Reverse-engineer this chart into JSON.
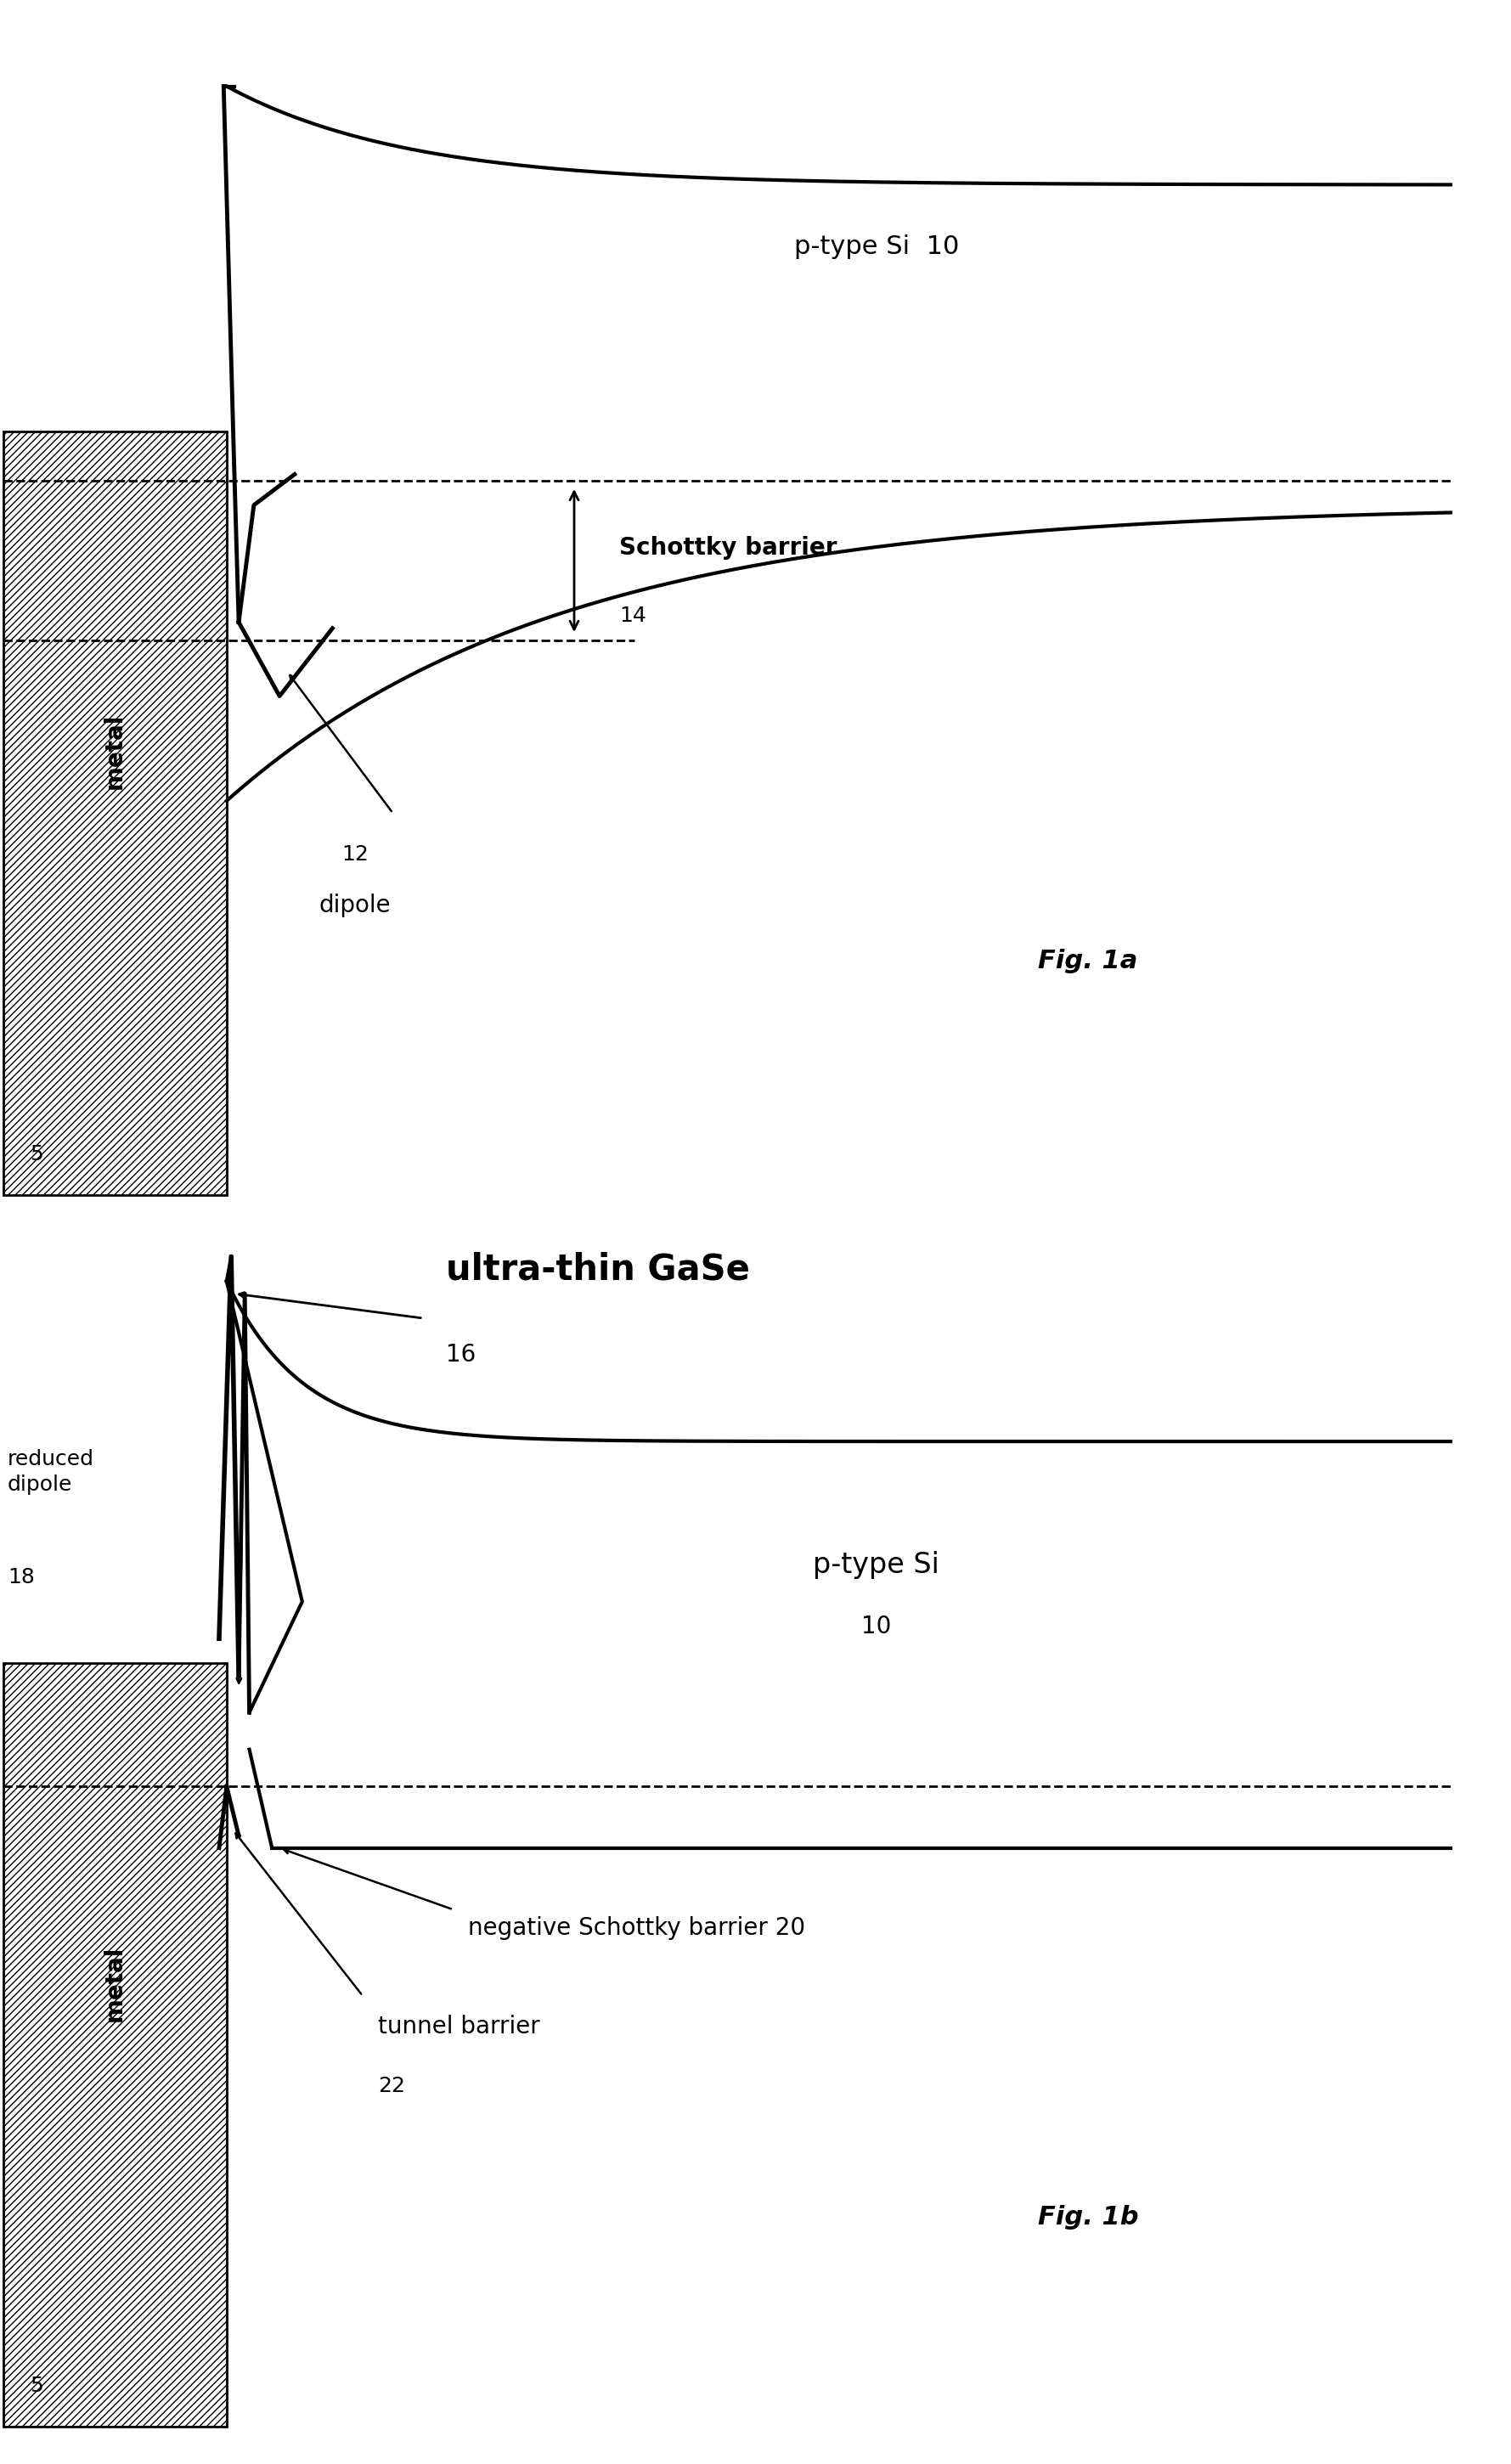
{
  "fig_width": 17.79,
  "fig_height": 29.01,
  "bg_color": "#ffffff",
  "line_color": "#000000",
  "fig1a": {
    "title": "Fig. 1a",
    "metal_label": "metal",
    "metal_number": "5",
    "ptype_label": "p-type Si  10",
    "dipole_num": "12",
    "dipole_word": "dipole",
    "schottky_label": "Schottky barrier",
    "schottky_num": "14"
  },
  "fig1b": {
    "title": "Fig. 1b",
    "metal_label": "metal",
    "metal_number": "5",
    "ptype_label": "p-type Si",
    "ptype_num": "10",
    "ultrathin_label": "ultra-thin GaSe",
    "ultrathin_num": "16",
    "reduced_dipole_label": "reduced\ndipole",
    "reduced_dipole_num": "18",
    "neg_schottky_label": "negative Schottky barrier 20",
    "tunnel_label": "tunnel barrier",
    "tunnel_num": "22"
  }
}
